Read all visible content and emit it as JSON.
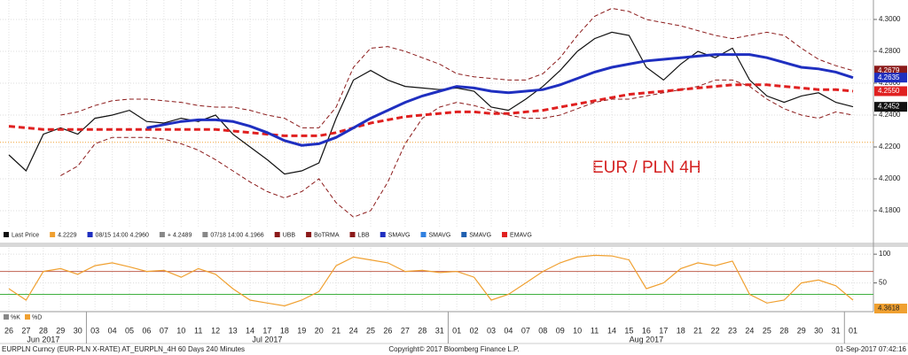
{
  "chart_data": [
    {
      "type": "line",
      "annotation": "EUR / PLN 4H",
      "categories": [
        "26",
        "27",
        "28",
        "29",
        "30",
        "03",
        "04",
        "05",
        "06",
        "07",
        "10",
        "11",
        "12",
        "13",
        "14",
        "17",
        "18",
        "19",
        "20",
        "21",
        "24",
        "25",
        "26",
        "27",
        "28",
        "31",
        "01",
        "02",
        "03",
        "04",
        "07",
        "08",
        "09",
        "10",
        "11",
        "14",
        "15",
        "16",
        "17",
        "18",
        "21",
        "22",
        "23",
        "24",
        "25",
        "28",
        "29",
        "30",
        "31",
        "01"
      ],
      "months": [
        "Jun 2017",
        "Jul 2017",
        "Aug 2017"
      ],
      "ylim": [
        4.1689,
        4.3122
      ],
      "yticks": [
        {
          "value": 4.18,
          "label": "4.1800"
        },
        {
          "value": 4.2,
          "label": "4.2000"
        },
        {
          "value": 4.22,
          "label": "4.2200"
        },
        {
          "value": 4.24,
          "label": "4.2400"
        },
        {
          "value": 4.26,
          "label": "4.2600"
        },
        {
          "value": 4.28,
          "label": "4.2800"
        },
        {
          "value": 4.3,
          "label": "4.3000"
        }
      ],
      "grid": true,
      "reference_line": {
        "value": 4.2229,
        "color": "#f0a030"
      },
      "series": [
        {
          "name": "UBB",
          "color": "#8b1a1a",
          "style": "dashed",
          "width": 1,
          "last_label": "4.2679",
          "values": [
            null,
            null,
            null,
            4.24,
            4.242,
            4.246,
            4.249,
            4.25,
            4.25,
            4.249,
            4.248,
            4.246,
            4.245,
            4.245,
            4.243,
            4.24,
            4.238,
            4.232,
            4.232,
            4.245,
            4.27,
            4.282,
            4.283,
            4.28,
            4.276,
            4.272,
            4.266,
            4.264,
            4.263,
            4.262,
            4.262,
            4.266,
            4.276,
            4.29,
            4.302,
            4.307,
            4.305,
            4.3,
            4.298,
            4.296,
            4.293,
            4.29,
            4.288,
            4.29,
            4.292,
            4.29,
            4.282,
            4.275,
            4.271,
            4.2679
          ]
        },
        {
          "name": "LBB",
          "color": "#8b1a1a",
          "style": "dashed",
          "width": 1,
          "values": [
            null,
            null,
            null,
            4.202,
            4.208,
            4.222,
            4.226,
            4.226,
            4.226,
            4.225,
            4.222,
            4.218,
            4.212,
            4.205,
            4.198,
            4.192,
            4.188,
            4.192,
            4.2,
            4.185,
            4.176,
            4.18,
            4.198,
            4.222,
            4.238,
            4.245,
            4.248,
            4.246,
            4.243,
            4.24,
            4.238,
            4.238,
            4.24,
            4.244,
            4.248,
            4.25,
            4.25,
            4.252,
            4.254,
            4.256,
            4.258,
            4.262,
            4.262,
            4.258,
            4.25,
            4.244,
            4.24,
            4.238,
            4.242,
            4.24
          ]
        },
        {
          "name": "Last Price",
          "color": "#111111",
          "style": "solid",
          "width": 1.2,
          "last_label": "4.2452",
          "values": [
            4.215,
            4.205,
            4.228,
            4.232,
            4.228,
            4.238,
            4.24,
            4.243,
            4.236,
            4.235,
            4.238,
            4.236,
            4.24,
            4.228,
            4.22,
            4.212,
            4.203,
            4.205,
            4.21,
            4.238,
            4.262,
            4.268,
            4.262,
            4.258,
            4.257,
            4.256,
            4.257,
            4.255,
            4.245,
            4.243,
            4.25,
            4.258,
            4.268,
            4.28,
            4.288,
            4.292,
            4.29,
            4.27,
            4.262,
            4.272,
            4.28,
            4.276,
            4.282,
            4.262,
            4.252,
            4.248,
            4.252,
            4.254,
            4.248,
            4.2452
          ]
        },
        {
          "name": "EMAVG",
          "color": "#e02020",
          "style": "dashed",
          "width": 3,
          "last_label": "4.2550",
          "values": [
            4.233,
            4.232,
            4.231,
            4.231,
            4.231,
            4.231,
            4.231,
            4.231,
            4.231,
            4.231,
            4.231,
            4.231,
            4.231,
            4.23,
            4.229,
            4.228,
            4.227,
            4.227,
            4.227,
            4.229,
            4.232,
            4.235,
            4.237,
            4.239,
            4.24,
            4.241,
            4.242,
            4.242,
            4.241,
            4.241,
            4.242,
            4.243,
            4.245,
            4.247,
            4.249,
            4.251,
            4.253,
            4.254,
            4.255,
            4.256,
            4.257,
            4.258,
            4.259,
            4.259,
            4.259,
            4.258,
            4.257,
            4.256,
            4.256,
            4.255
          ]
        },
        {
          "name": "SMAVG",
          "color": "#1f2fc0",
          "style": "solid",
          "width": 3,
          "last_label": "4.2635",
          "values": [
            null,
            null,
            null,
            null,
            null,
            null,
            null,
            null,
            4.232,
            4.234,
            4.236,
            4.237,
            4.237,
            4.236,
            4.233,
            4.229,
            4.224,
            4.221,
            4.222,
            4.226,
            4.232,
            4.238,
            4.243,
            4.248,
            4.252,
            4.255,
            4.258,
            4.257,
            4.255,
            4.254,
            4.255,
            4.256,
            4.259,
            4.263,
            4.267,
            4.27,
            4.272,
            4.274,
            4.275,
            4.276,
            4.277,
            4.278,
            4.278,
            4.278,
            4.276,
            4.273,
            4.27,
            4.269,
            4.267,
            4.2635
          ]
        }
      ]
    },
    {
      "type": "line",
      "ylim": [
        0,
        111
      ],
      "yticks": [
        50,
        100
      ],
      "side_label": "4.3618",
      "levels": [
        {
          "value": 70,
          "color": "#c06050"
        },
        {
          "value": 30,
          "color": "#40b040"
        }
      ],
      "series": [
        {
          "name": "%K",
          "color": "#f0a030",
          "style": "solid",
          "width": 1.2,
          "values": [
            40,
            20,
            70,
            75,
            65,
            80,
            85,
            78,
            70,
            72,
            60,
            75,
            65,
            40,
            20,
            15,
            10,
            20,
            35,
            80,
            95,
            90,
            85,
            70,
            72,
            68,
            70,
            60,
            20,
            30,
            50,
            70,
            85,
            95,
            98,
            97,
            90,
            40,
            50,
            75,
            85,
            80,
            88,
            30,
            15,
            20,
            50,
            55,
            45,
            20
          ]
        }
      ]
    }
  ],
  "legend_items": [
    {
      "label": "Last Price",
      "color": "#111111"
    },
    {
      "label": "4.2229",
      "color": "#f0a030"
    },
    {
      "label": "08/15 14:00 4.2960",
      "color": "#1f2fc0"
    },
    {
      "label": "+ 4.2489",
      "color": "#888888"
    },
    {
      "label": "07/18 14:00 4.1966",
      "color": "#888888"
    },
    {
      "label": "UBB",
      "color": "#8b1a1a"
    },
    {
      "label": "BoTRMA",
      "color": "#8b1a1a"
    },
    {
      "label": "LBB",
      "color": "#8b1a1a"
    },
    {
      "label": "SMAVG",
      "color": "#1f2fc0"
    },
    {
      "label": "SMAVG",
      "color": "#3080e0"
    },
    {
      "label": "SMAVG",
      "color": "#2060b0"
    },
    {
      "label": "EMAVG",
      "color": "#e02020"
    }
  ],
  "stoch_legend": [
    {
      "label": "%K",
      "color": "#888888"
    },
    {
      "label": "%D",
      "color": "#f0a030"
    }
  ],
  "footer": {
    "left": "EURPLN Curncy (EUR-PLN X-RATE) AT_EURPLN_4H 60 Days 240 Minutes",
    "center": "Copyright© 2017 Bloomberg Finance L.P.",
    "right": "01-Sep-2017 07:42:16"
  }
}
